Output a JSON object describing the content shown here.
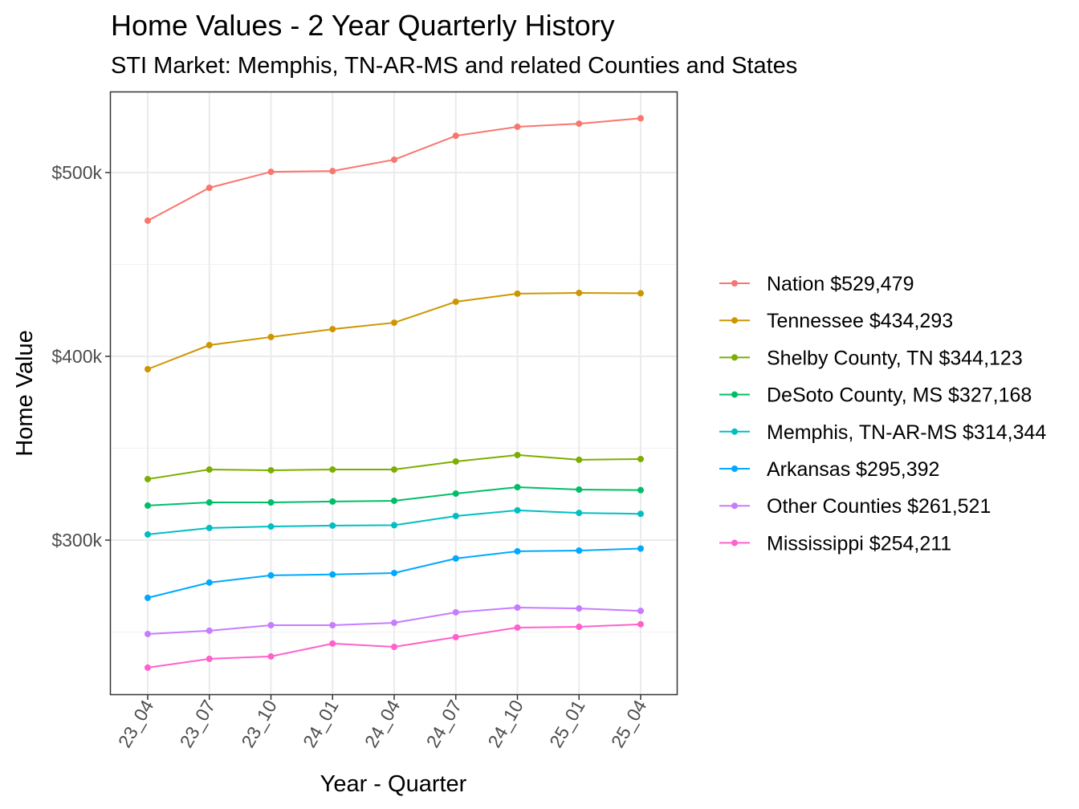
{
  "chart_data": {
    "type": "line",
    "title": "Home Values - 2 Year Quarterly History",
    "subtitle": "STI Market: Memphis, TN-AR-MS and related Counties and States",
    "xlabel": "Year - Quarter",
    "ylabel": "Home Value",
    "categories": [
      "23_04",
      "23_07",
      "23_10",
      "24_01",
      "24_04",
      "24_07",
      "24_10",
      "25_01",
      "25_04"
    ],
    "ylim": [
      215.7,
      544.1
    ],
    "yunit": "thousands USD",
    "yticks": [
      {
        "value": 300,
        "label": "$300k"
      },
      {
        "value": 400,
        "label": "$400k"
      },
      {
        "value": 500,
        "label": "$500k"
      }
    ],
    "grid": true,
    "legend_position": "right",
    "series": [
      {
        "name": "Nation $529,479",
        "color": "#F8766D",
        "values": [
          473.8,
          491.7,
          500.4,
          500.8,
          507.0,
          520.0,
          524.9,
          526.6,
          529.5
        ]
      },
      {
        "name": "Tennessee $434,293",
        "color": "#CD9600",
        "values": [
          393.0,
          406.1,
          410.5,
          414.8,
          418.3,
          429.7,
          434.1,
          434.5,
          434.3
        ]
      },
      {
        "name": "Shelby County, TN $344,123",
        "color": "#7CAE00",
        "values": [
          333.2,
          338.4,
          338.0,
          338.4,
          338.4,
          342.8,
          346.3,
          343.7,
          344.1
        ]
      },
      {
        "name": "DeSoto County, MS $327,168",
        "color": "#00BE67",
        "values": [
          318.8,
          320.5,
          320.5,
          321.0,
          321.4,
          325.3,
          328.8,
          327.5,
          327.2
        ]
      },
      {
        "name": "Memphis, TN-AR-MS $314,344",
        "color": "#00BFC4",
        "values": [
          303.1,
          306.6,
          307.4,
          307.9,
          308.1,
          313.1,
          316.2,
          314.8,
          314.3
        ]
      },
      {
        "name": "Arkansas $295,392",
        "color": "#00A9FF",
        "values": [
          268.6,
          276.9,
          280.8,
          281.3,
          282.1,
          290.0,
          293.9,
          294.3,
          295.4
        ]
      },
      {
        "name": "Other Counties $261,521",
        "color": "#C77CFF",
        "values": [
          248.9,
          250.7,
          253.7,
          253.7,
          255.0,
          260.7,
          263.3,
          262.8,
          261.5
        ]
      },
      {
        "name": "Mississippi $254,211",
        "color": "#FF61CC",
        "values": [
          230.6,
          235.4,
          236.7,
          243.7,
          241.9,
          247.2,
          252.4,
          252.8,
          254.2
        ]
      }
    ]
  }
}
